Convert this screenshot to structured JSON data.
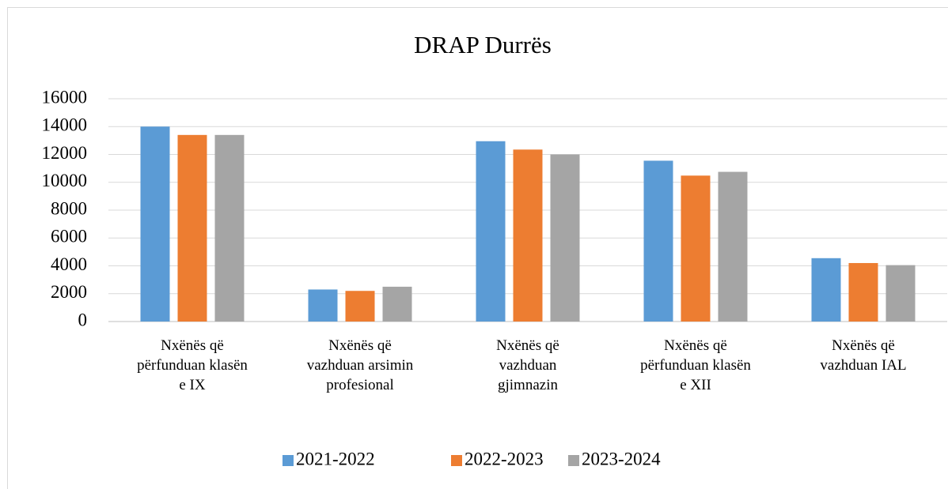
{
  "chart_data": {
    "type": "bar",
    "title": "DRAP Durrës",
    "categories": [
      "Nxënës që\npërfunduan klasën\ne IX",
      "Nxënës që\nvazhduan arsimin\nprofesional",
      "Nxënës që\nvazhduan\ngjimnazin",
      "Nxënës që\npërfunduan klasën\ne XII",
      "Nxënës që\nvazhduan IAL"
    ],
    "series": [
      {
        "name": "2021-2022",
        "color": "#5b9bd5",
        "values": [
          14000,
          2300,
          12950,
          11550,
          4550
        ]
      },
      {
        "name": "2022-2023",
        "color": "#ed7d31",
        "values": [
          13400,
          2200,
          12350,
          10480,
          4200
        ]
      },
      {
        "name": "2023-2024",
        "color": "#a5a5a5",
        "values": [
          13400,
          2500,
          12000,
          10750,
          4050
        ]
      }
    ],
    "ylim": [
      0,
      16000
    ],
    "yticks": [
      0,
      2000,
      4000,
      6000,
      8000,
      10000,
      12000,
      14000,
      16000
    ],
    "grid": true,
    "legend": "bottom"
  }
}
